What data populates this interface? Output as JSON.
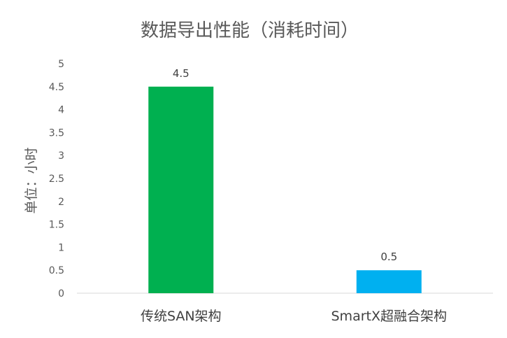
{
  "chart_data": {
    "type": "bar",
    "title": "数据导出性能（消耗时间）",
    "ylabel": "单位：小时",
    "xlabel": "",
    "categories": [
      "传统SAN架构",
      "SmartX超融合架构"
    ],
    "values": [
      4.5,
      0.5
    ],
    "data_labels": [
      "4.5",
      "0.5"
    ],
    "colors": [
      "#00B050",
      "#00B0F0"
    ],
    "ylim": [
      0,
      5
    ],
    "yticks": [
      "0",
      "0.5",
      "1",
      "1.5",
      "2",
      "2.5",
      "3",
      "3.5",
      "4",
      "4.5",
      "5"
    ],
    "grid": false,
    "legend": "none"
  }
}
